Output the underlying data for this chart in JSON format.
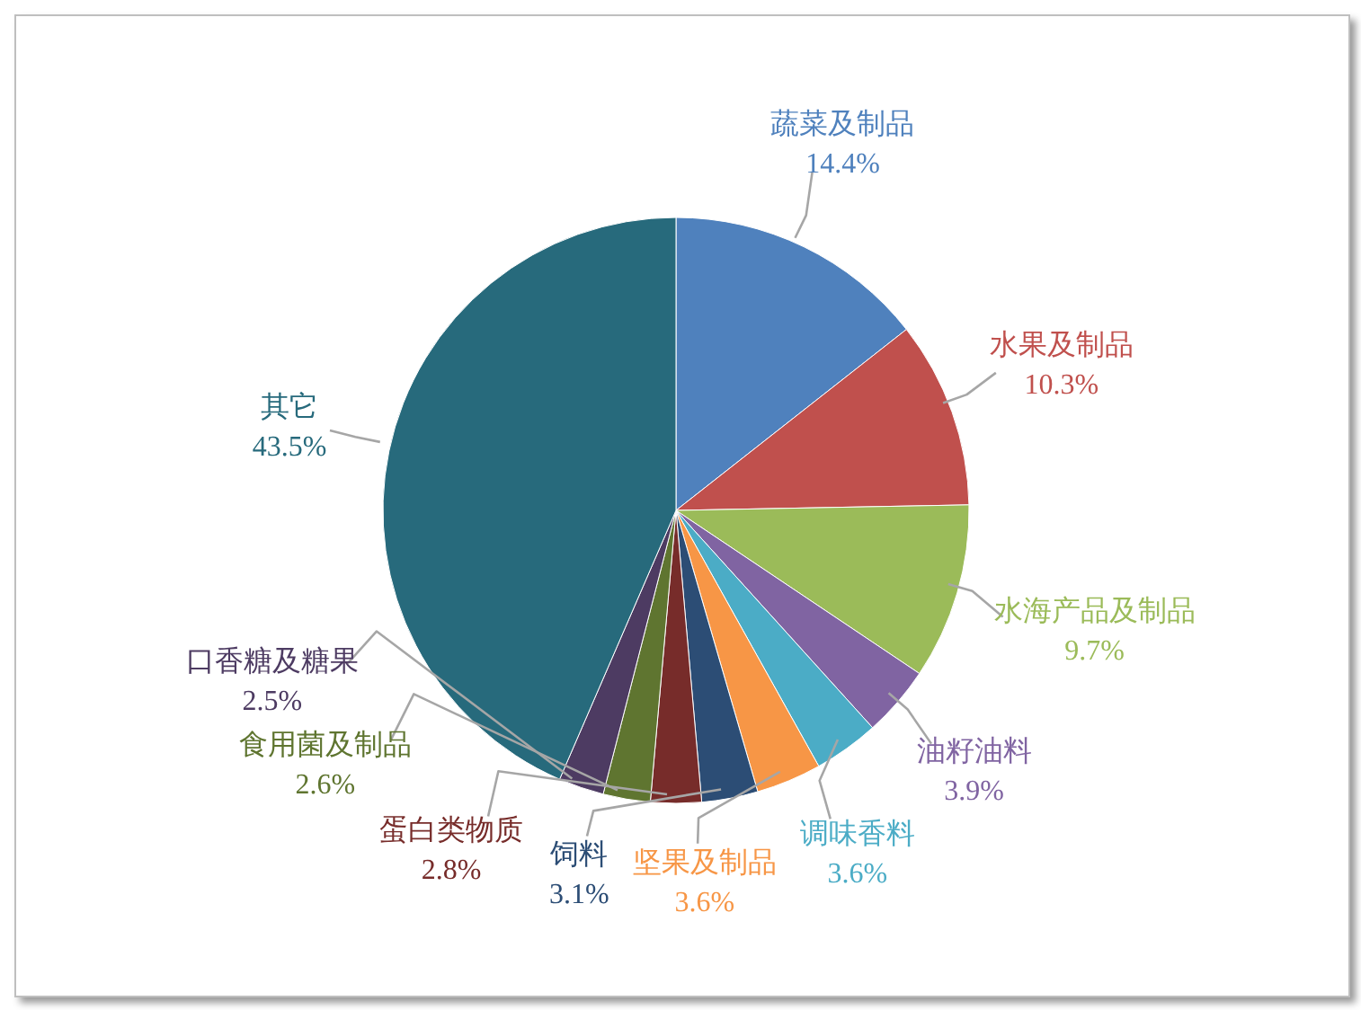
{
  "chart_data": {
    "type": "pie",
    "categories": [
      "蔬菜及制品",
      "水果及制品",
      "水海产品及制品",
      "油籽油料",
      "调味香料",
      "坚果及制品",
      "饲料",
      "蛋白类物质",
      "食用菌及制品",
      "口香糖及糖果",
      "其它"
    ],
    "values": [
      14.4,
      10.3,
      9.7,
      3.9,
      3.6,
      3.6,
      3.1,
      2.8,
      2.6,
      2.5,
      43.5
    ],
    "value_labels": [
      "14.4%",
      "10.3%",
      "9.7%",
      "3.9%",
      "3.6%",
      "3.6%",
      "3.1%",
      "2.8%",
      "2.6%",
      "2.5%",
      "43.5%"
    ],
    "colors": [
      "#4f81bd",
      "#c0504d",
      "#9bbb59",
      "#8064a2",
      "#4bacc6",
      "#f79646",
      "#2c4d75",
      "#772c2a",
      "#5f7530",
      "#4d3b62",
      "#276a7c"
    ]
  }
}
